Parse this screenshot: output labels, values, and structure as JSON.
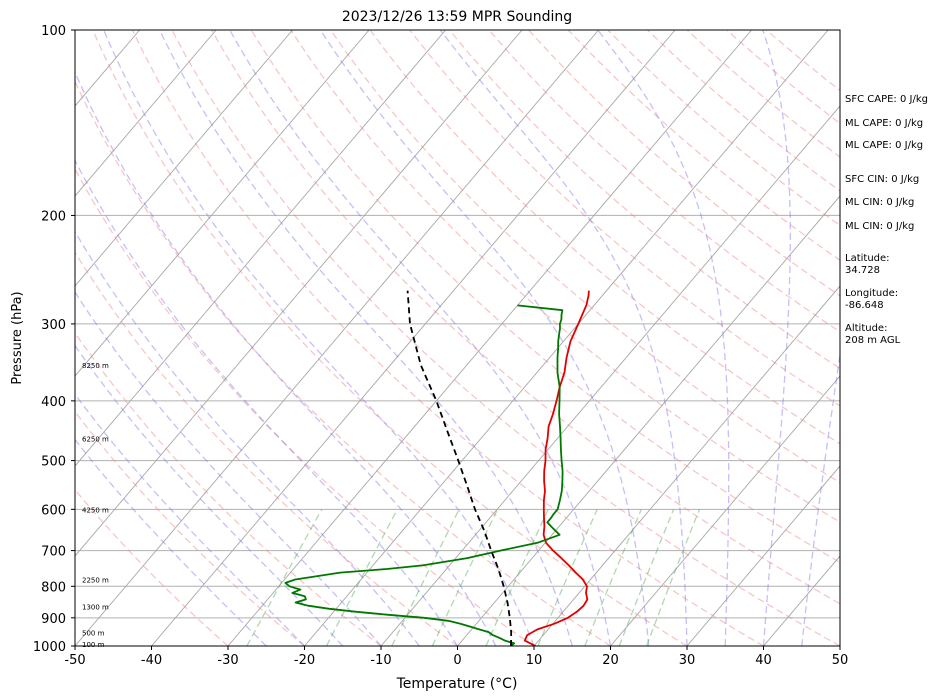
{
  "chart_data": {
    "type": "line",
    "title": "2023/12/26 13:59 MPR Sounding",
    "xlabel": "Temperature (°C)",
    "ylabel": "Pressure (hPa)",
    "xlim": [
      -50,
      50
    ],
    "ylim": [
      1000,
      100
    ],
    "y_scale": "log",
    "x_ticks": [
      -50,
      -40,
      -30,
      -20,
      -10,
      0,
      10,
      20,
      30,
      40,
      50
    ],
    "y_ticks": [
      1000,
      900,
      800,
      700,
      600,
      500,
      400,
      300,
      200,
      100
    ],
    "grid": true,
    "background_lines": {
      "dry_adiabats": "dashed red",
      "moist_adiabats": "dashed blue",
      "mixing_ratio": "dashed green",
      "isotherms": "solid gray"
    },
    "series": [
      {
        "color": "#e00000",
        "pressure": [
          1000,
          980,
          960,
          940,
          920,
          900,
          880,
          860,
          840,
          820,
          800,
          780,
          760,
          740,
          720,
          700,
          680,
          660,
          640,
          620,
          600,
          580,
          560,
          540,
          520,
          500,
          480,
          460,
          440,
          420,
          400,
          380,
          360,
          340,
          320,
          300,
          290,
          280,
          270,
          265
        ],
        "temperature": [
          10.2,
          8.2,
          7.9,
          8.6,
          10.2,
          11.3,
          11.8,
          12.0,
          11.8,
          10.9,
          10.3,
          9.0,
          7.3,
          5.6,
          3.8,
          1.9,
          0.1,
          -1.1,
          -1.9,
          -2.9,
          -3.9,
          -4.9,
          -5.8,
          -7.0,
          -8.1,
          -9.1,
          -10.3,
          -11.3,
          -12.5,
          -13.3,
          -14.3,
          -15.4,
          -16.4,
          -17.8,
          -19.1,
          -20.0,
          -20.5,
          -21.0,
          -21.8,
          -22.3
        ]
      },
      {
        "color": "#007800",
        "pressure": [
          1000,
          990,
          980,
          970,
          960,
          950,
          940,
          930,
          920,
          910,
          900,
          890,
          880,
          870,
          860,
          850,
          840,
          830,
          820,
          810,
          800,
          790,
          780,
          770,
          760,
          750,
          740,
          720,
          700,
          680,
          660,
          640,
          630,
          620,
          610,
          600,
          580,
          560,
          540,
          520,
          500,
          480,
          460,
          440,
          420,
          400,
          380,
          360,
          340,
          330,
          320,
          310,
          305,
          300,
          295,
          290,
          285,
          280
        ],
        "temperature": [
          7.0,
          7.1,
          5.6,
          4.6,
          3.4,
          2.6,
          1.0,
          -0.5,
          -2.1,
          -4.0,
          -7.5,
          -12.5,
          -17.0,
          -21.0,
          -24.0,
          -26.0,
          -25.0,
          -25.5,
          -27.5,
          -26.8,
          -28.6,
          -29.5,
          -28.6,
          -26.1,
          -23.5,
          -17.8,
          -13.5,
          -8.5,
          -5.0,
          -1.0,
          1.0,
          -1.0,
          -2.0,
          -2.0,
          -2.1,
          -2.1,
          -2.8,
          -3.6,
          -4.6,
          -5.7,
          -7.0,
          -8.3,
          -9.6,
          -11.0,
          -12.5,
          -13.9,
          -15.4,
          -17.3,
          -19.0,
          -19.8,
          -20.7,
          -21.5,
          -21.9,
          -22.4,
          -22.7,
          -23.2,
          -23.6,
          -30.0
        ]
      },
      {
        "color": "#000000",
        "style": "dashed",
        "pressure": [
          1000,
          950,
          900,
          850,
          800,
          750,
          700,
          650,
          600,
          550,
          500,
          450,
          400,
          350,
          300,
          265
        ],
        "temperature": [
          7.0,
          5.5,
          3.7,
          1.7,
          -0.6,
          -3.2,
          -6.2,
          -9.3,
          -12.9,
          -16.5,
          -20.5,
          -25.0,
          -30.0,
          -36.0,
          -42.0,
          -46.0
        ]
      }
    ],
    "height_labels": [
      {
        "text": "100 m",
        "pressure": 993
      },
      {
        "text": "500 m",
        "pressure": 950
      },
      {
        "text": "1300 m",
        "pressure": 863
      },
      {
        "text": "2250 m",
        "pressure": 780
      },
      {
        "text": "4250 m",
        "pressure": 600
      },
      {
        "text": "6250 m",
        "pressure": 460
      },
      {
        "text": "8250 m",
        "pressure": 350
      }
    ]
  },
  "side_panel": [
    "SFC CAPE: 0 J/kg",
    "ML CAPE: 0 J/kg",
    "ML CAPE: 0 J/kg",
    "SFC CIN: 0 J/kg",
    "ML CIN: 0 J/kg",
    "ML CIN: 0 J/kg",
    "Latitude:",
    "34.728",
    "Longitude:",
    "-86.648",
    "Altitude:",
    "208 m AGL"
  ]
}
